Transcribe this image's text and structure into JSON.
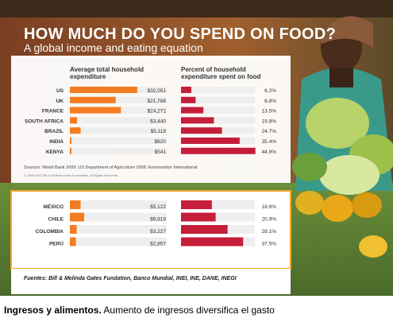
{
  "title": "HOW MUCH DO YOU SPEND ON FOOD?",
  "subtitle": "A global income and eating equation",
  "colors": {
    "orange": "#f47c20",
    "red": "#c41e3a",
    "banner": "#8a4a2a",
    "panel": "#ffffff",
    "frame": "#f5a623"
  },
  "chart_data": [
    {
      "type": "bar",
      "title": "Average total household expenditure",
      "categories": [
        "US",
        "UK",
        "FRANCE",
        "SOUTH AFRICA",
        "BRAZIL",
        "INDIA",
        "KENYA"
      ],
      "values": [
        32051,
        21788,
        24271,
        3440,
        5118,
        620,
        541
      ],
      "labels": [
        "$32,051",
        "$21,788",
        "$24,271",
        "$3,440",
        "$5,118",
        "$620",
        "$541"
      ],
      "color": "#f47c20",
      "xlim": [
        0,
        34000
      ]
    },
    {
      "type": "bar",
      "title": "Percent of household expenditure spent on food",
      "categories": [
        "US",
        "UK",
        "FRANCE",
        "SOUTH AFRICA",
        "BRAZIL",
        "INDIA",
        "KENYA"
      ],
      "values": [
        6.2,
        8.8,
        13.5,
        19.8,
        24.7,
        35.4,
        44.9
      ],
      "labels": [
        "6.2%",
        "8.8%",
        "13.5%",
        "19.8%",
        "24.7%",
        "35.4%",
        "44.9%"
      ],
      "color": "#c41e3a",
      "xlim": [
        0,
        46
      ]
    },
    {
      "type": "bar",
      "categories": [
        "MÉXICO",
        "CHILE",
        "COLOMBIA",
        "PERÚ"
      ],
      "values": [
        5122,
        6818,
        3227,
        2857
      ],
      "labels": [
        "$5,122",
        "$6,818",
        "$3,227",
        "$2,857"
      ],
      "color": "#f47c20",
      "xlim": [
        0,
        34000
      ]
    },
    {
      "type": "bar",
      "categories": [
        "MÉXICO",
        "CHILE",
        "COLOMBIA",
        "PERÚ"
      ],
      "values": [
        18.6,
        20.9,
        28.1,
        37.5
      ],
      "labels": [
        "18.6%",
        "20.9%",
        "28.1%",
        "37.5%"
      ],
      "color": "#c41e3a",
      "xlim": [
        0,
        46
      ]
    }
  ],
  "sources": "Sources: World Bank 2009; US Department of Agriculture 2009; Euromonitor International",
  "copyright": "© 1999-2011 Bill & Melinda Gates Foundation. All Rights Reserved.",
  "footer_sources": "Fuentes: Bill & Melinda Gates Fundation, Banco Mundial, INEI, INE, DANE, INEGI",
  "caption_bold": "Ingresos y alimentos.",
  "caption_text": " Aumento de ingresos diversifica el gasto"
}
